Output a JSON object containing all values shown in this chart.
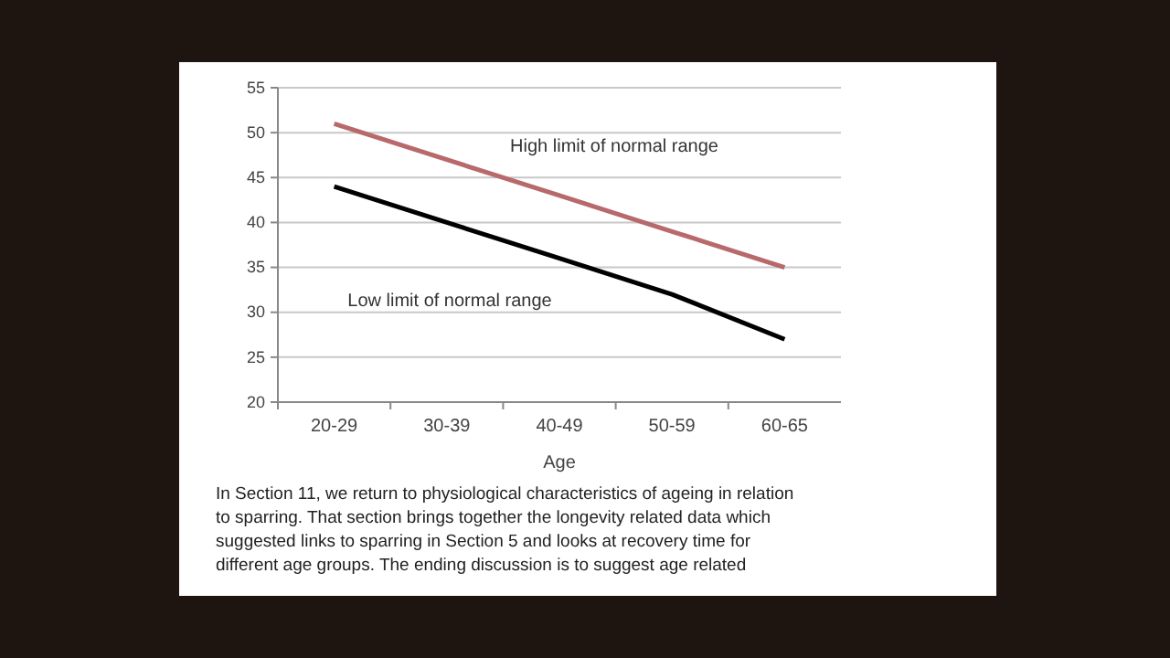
{
  "chart_data": {
    "type": "line",
    "xlabel": "Age",
    "categories": [
      "20-29",
      "30-39",
      "40-49",
      "50-59",
      "60-65"
    ],
    "series": [
      {
        "name": "High limit of normal range",
        "color": "#b8696c",
        "values": [
          51,
          47,
          43,
          39,
          35
        ]
      },
      {
        "name": "Low limit of normal range",
        "color": "#000000",
        "values": [
          44,
          40,
          36,
          32,
          27
        ]
      }
    ],
    "ylim": [
      20,
      55
    ],
    "yticks": [
      20,
      25,
      30,
      35,
      40,
      45,
      50,
      55
    ],
    "grid": "y",
    "legend": false,
    "marker": "none",
    "line_style": "solid",
    "annotations": [
      "In Section 11, we return to physiological characteristics of ageing in relation to sparring. That section brings together the longevity related data which suggested links to sparring in Section 5 and looks at recovery time for different age groups. The ending discussion is to suggest age related"
    ]
  }
}
